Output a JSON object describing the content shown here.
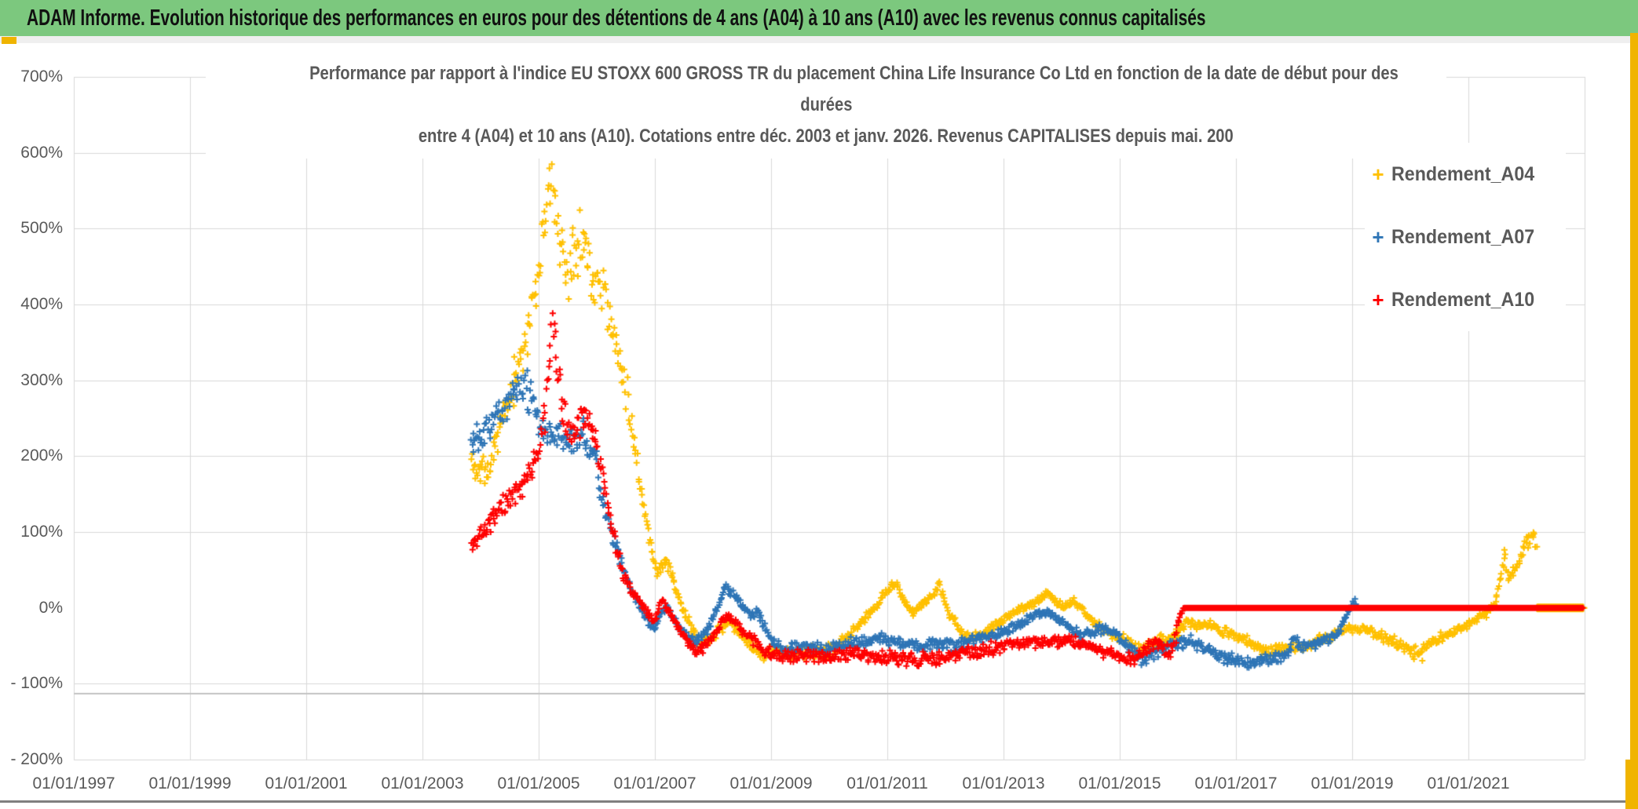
{
  "banner": {
    "text": "ADAM Informe. Evolution historique des performances en euros pour des détentions de 4 ans (A04) à 10 ans (A10) avec les revenus connus capitalisés",
    "background_color": "#7CC87E",
    "accent_color": "#F0B400"
  },
  "chart_data": {
    "type": "scatter",
    "marker": "plus",
    "title_lines": [
      "Performance par rapport à l'indice EU STOXX 600 GROSS TR  du placement China Life Insurance Co Ltd en fonction de la date de début pour des",
      "durées",
      "entre 4 (A04) et 10 ans (A10). Cotations entre déc. 2003 et janv. 2026. Revenus CAPITALISES depuis mai. 200"
    ],
    "plot": {
      "x_min": 1997,
      "x_max": 2023,
      "y_min": -200,
      "y_max": 700,
      "grid": true,
      "gridline_color": "#D9D9D9",
      "baseline_y_pct": -113
    },
    "y_axis": {
      "tick_values": [
        700,
        600,
        500,
        400,
        300,
        200,
        100,
        0,
        -100,
        -200
      ],
      "tick_labels": [
        "700%",
        "600%",
        "500%",
        "400%",
        "300%",
        "200%",
        "100%",
        "0%",
        "- 100%",
        "- 200%"
      ]
    },
    "x_axis": {
      "tick_years": [
        1997,
        1999,
        2001,
        2003,
        2005,
        2007,
        2009,
        2011,
        2013,
        2015,
        2017,
        2019,
        2021
      ],
      "tick_labels": [
        "01/01/1997",
        "01/01/1999",
        "01/01/2001",
        "01/01/2003",
        "01/01/2005",
        "01/01/2007",
        "01/01/2009",
        "01/01/2011",
        "01/01/2013",
        "01/01/2015",
        "01/01/2017",
        "01/01/2019",
        "01/01/2021"
      ],
      "gridline_years": [
        1997,
        1999,
        2001,
        2003,
        2005,
        2007,
        2009,
        2011,
        2013,
        2015,
        2017,
        2019,
        2021,
        2023
      ]
    },
    "legend_position": "right",
    "series": [
      {
        "name": "Rendement_A04",
        "color": "#FFC000",
        "seed": 11,
        "end": 2022.18,
        "flat_zero_from": 2022.18,
        "flat_zero_to": 2022.98,
        "anchors": [
          [
            2003.84,
            195
          ],
          [
            2003.95,
            180
          ],
          [
            2004.05,
            185
          ],
          [
            2004.15,
            175
          ],
          [
            2004.25,
            215
          ],
          [
            2004.4,
            255
          ],
          [
            2004.55,
            290
          ],
          [
            2004.65,
            320
          ],
          [
            2004.8,
            355
          ],
          [
            2004.95,
            420
          ],
          [
            2005.05,
            480
          ],
          [
            2005.15,
            540
          ],
          [
            2005.22,
            545
          ],
          [
            2005.3,
            520
          ],
          [
            2005.4,
            470
          ],
          [
            2005.5,
            440
          ],
          [
            2005.6,
            475
          ],
          [
            2005.75,
            490
          ],
          [
            2005.85,
            460
          ],
          [
            2005.95,
            430
          ],
          [
            2006.05,
            440
          ],
          [
            2006.15,
            420
          ],
          [
            2006.25,
            370
          ],
          [
            2006.4,
            330
          ],
          [
            2006.55,
            270
          ],
          [
            2006.7,
            190
          ],
          [
            2006.85,
            115
          ],
          [
            2006.95,
            75
          ],
          [
            2007.05,
            45
          ],
          [
            2007.15,
            60
          ],
          [
            2007.25,
            55
          ],
          [
            2007.35,
            25
          ],
          [
            2007.5,
            -5
          ],
          [
            2007.65,
            -30
          ],
          [
            2007.8,
            -48
          ],
          [
            2007.95,
            -40
          ],
          [
            2008.1,
            -30
          ],
          [
            2008.3,
            -18
          ],
          [
            2008.45,
            -35
          ],
          [
            2008.65,
            -50
          ],
          [
            2008.85,
            -62
          ],
          [
            2009.05,
            -58
          ],
          [
            2009.3,
            -60
          ],
          [
            2009.6,
            -58
          ],
          [
            2009.9,
            -60
          ],
          [
            2010.1,
            -52
          ],
          [
            2010.35,
            -35
          ],
          [
            2010.6,
            -15
          ],
          [
            2010.85,
            5
          ],
          [
            2011.0,
            25
          ],
          [
            2011.15,
            30
          ],
          [
            2011.3,
            8
          ],
          [
            2011.45,
            -8
          ],
          [
            2011.6,
            5
          ],
          [
            2011.75,
            15
          ],
          [
            2011.9,
            28
          ],
          [
            2012.05,
            -5
          ],
          [
            2012.25,
            -30
          ],
          [
            2012.45,
            -42
          ],
          [
            2012.65,
            -32
          ],
          [
            2012.85,
            -22
          ],
          [
            2013.05,
            -12
          ],
          [
            2013.3,
            -2
          ],
          [
            2013.55,
            8
          ],
          [
            2013.75,
            20
          ],
          [
            2013.9,
            8
          ],
          [
            2014.05,
            2
          ],
          [
            2014.2,
            8
          ],
          [
            2014.35,
            -2
          ],
          [
            2014.55,
            -18
          ],
          [
            2014.75,
            -30
          ],
          [
            2014.95,
            -38
          ],
          [
            2015.15,
            -45
          ],
          [
            2015.35,
            -55
          ],
          [
            2015.55,
            -48
          ],
          [
            2015.75,
            -42
          ],
          [
            2015.95,
            -35
          ],
          [
            2016.15,
            -18
          ],
          [
            2016.35,
            -25
          ],
          [
            2016.55,
            -22
          ],
          [
            2016.75,
            -30
          ],
          [
            2016.95,
            -35
          ],
          [
            2017.15,
            -42
          ],
          [
            2017.35,
            -50
          ],
          [
            2017.55,
            -57
          ],
          [
            2017.75,
            -52
          ],
          [
            2017.95,
            -50
          ],
          [
            2018.15,
            -52
          ],
          [
            2018.35,
            -45
          ],
          [
            2018.55,
            -40
          ],
          [
            2018.75,
            -32
          ],
          [
            2018.95,
            -28
          ],
          [
            2019.15,
            -28
          ],
          [
            2019.35,
            -32
          ],
          [
            2019.6,
            -40
          ],
          [
            2019.85,
            -50
          ],
          [
            2020.05,
            -58
          ],
          [
            2020.2,
            -62
          ],
          [
            2020.35,
            -45
          ],
          [
            2020.55,
            -38
          ],
          [
            2020.75,
            -32
          ],
          [
            2020.95,
            -25
          ],
          [
            2021.15,
            -15
          ],
          [
            2021.3,
            -8
          ],
          [
            2021.45,
            5
          ],
          [
            2021.55,
            35
          ],
          [
            2021.63,
            70
          ],
          [
            2021.7,
            40
          ],
          [
            2021.8,
            52
          ],
          [
            2021.9,
            68
          ],
          [
            2022.0,
            88
          ],
          [
            2022.08,
            95
          ],
          [
            2022.15,
            88
          ]
        ]
      },
      {
        "name": "Rendement_A07",
        "color": "#2E75B6",
        "seed": 22,
        "end": 2019.08,
        "anchors": [
          [
            2003.84,
            225
          ],
          [
            2004.0,
            235
          ],
          [
            2004.15,
            245
          ],
          [
            2004.3,
            255
          ],
          [
            2004.45,
            265
          ],
          [
            2004.6,
            288
          ],
          [
            2004.72,
            302
          ],
          [
            2004.85,
            280
          ],
          [
            2005.0,
            245
          ],
          [
            2005.15,
            228
          ],
          [
            2005.3,
            232
          ],
          [
            2005.45,
            215
          ],
          [
            2005.6,
            222
          ],
          [
            2005.75,
            228
          ],
          [
            2005.9,
            210
          ],
          [
            2006.0,
            195
          ],
          [
            2006.1,
            140
          ],
          [
            2006.25,
            100
          ],
          [
            2006.4,
            65
          ],
          [
            2006.55,
            30
          ],
          [
            2006.7,
            8
          ],
          [
            2006.85,
            -15
          ],
          [
            2007.0,
            -28
          ],
          [
            2007.1,
            -8
          ],
          [
            2007.2,
            2
          ],
          [
            2007.35,
            -15
          ],
          [
            2007.5,
            -32
          ],
          [
            2007.65,
            -45
          ],
          [
            2007.8,
            -42
          ],
          [
            2007.95,
            -25
          ],
          [
            2008.1,
            5
          ],
          [
            2008.22,
            30
          ],
          [
            2008.35,
            18
          ],
          [
            2008.5,
            2
          ],
          [
            2008.65,
            -10
          ],
          [
            2008.78,
            -5
          ],
          [
            2008.9,
            -25
          ],
          [
            2009.05,
            -45
          ],
          [
            2009.25,
            -55
          ],
          [
            2009.5,
            -52
          ],
          [
            2009.75,
            -55
          ],
          [
            2010.0,
            -52
          ],
          [
            2010.3,
            -48
          ],
          [
            2010.6,
            -44
          ],
          [
            2010.9,
            -40
          ],
          [
            2011.1,
            -44
          ],
          [
            2011.35,
            -48
          ],
          [
            2011.6,
            -52
          ],
          [
            2011.85,
            -46
          ],
          [
            2012.1,
            -50
          ],
          [
            2012.35,
            -45
          ],
          [
            2012.6,
            -40
          ],
          [
            2012.85,
            -36
          ],
          [
            2013.1,
            -28
          ],
          [
            2013.35,
            -18
          ],
          [
            2013.6,
            -8
          ],
          [
            2013.75,
            -5
          ],
          [
            2013.95,
            -15
          ],
          [
            2014.15,
            -28
          ],
          [
            2014.35,
            -36
          ],
          [
            2014.6,
            -30
          ],
          [
            2014.85,
            -28
          ],
          [
            2015.05,
            -42
          ],
          [
            2015.25,
            -60
          ],
          [
            2015.42,
            -72
          ],
          [
            2015.6,
            -60
          ],
          [
            2015.8,
            -50
          ],
          [
            2016.0,
            -46
          ],
          [
            2016.25,
            -44
          ],
          [
            2016.45,
            -52
          ],
          [
            2016.65,
            -60
          ],
          [
            2016.85,
            -68
          ],
          [
            2017.05,
            -72
          ],
          [
            2017.3,
            -74
          ],
          [
            2017.5,
            -68
          ],
          [
            2017.7,
            -65
          ],
          [
            2017.9,
            -60
          ],
          [
            2018.02,
            -38
          ],
          [
            2018.1,
            -52
          ],
          [
            2018.3,
            -48
          ],
          [
            2018.5,
            -44
          ],
          [
            2018.7,
            -38
          ],
          [
            2018.85,
            -20
          ],
          [
            2018.95,
            0
          ],
          [
            2019.05,
            8
          ]
        ]
      },
      {
        "name": "Rendement_A10",
        "color": "#FF0000",
        "seed": 33,
        "end": 2016.1,
        "flat_zero_from": 2016.1,
        "flat_zero_to": 2022.98,
        "anchors": [
          [
            2003.84,
            82
          ],
          [
            2004.0,
            96
          ],
          [
            2004.15,
            110
          ],
          [
            2004.3,
            124
          ],
          [
            2004.45,
            138
          ],
          [
            2004.6,
            152
          ],
          [
            2004.75,
            168
          ],
          [
            2004.88,
            182
          ],
          [
            2005.0,
            210
          ],
          [
            2005.1,
            255
          ],
          [
            2005.18,
            320
          ],
          [
            2005.26,
            375
          ],
          [
            2005.33,
            310
          ],
          [
            2005.42,
            265
          ],
          [
            2005.52,
            230
          ],
          [
            2005.65,
            238
          ],
          [
            2005.8,
            250
          ],
          [
            2005.92,
            232
          ],
          [
            2006.05,
            195
          ],
          [
            2006.18,
            140
          ],
          [
            2006.3,
            90
          ],
          [
            2006.45,
            45
          ],
          [
            2006.6,
            22
          ],
          [
            2006.75,
            8
          ],
          [
            2006.9,
            -8
          ],
          [
            2007.0,
            -18
          ],
          [
            2007.12,
            10
          ],
          [
            2007.25,
            -5
          ],
          [
            2007.4,
            -25
          ],
          [
            2007.55,
            -45
          ],
          [
            2007.7,
            -58
          ],
          [
            2007.85,
            -50
          ],
          [
            2008.0,
            -38
          ],
          [
            2008.15,
            -20
          ],
          [
            2008.27,
            -10
          ],
          [
            2008.45,
            -25
          ],
          [
            2008.65,
            -40
          ],
          [
            2008.85,
            -55
          ],
          [
            2009.05,
            -63
          ],
          [
            2009.3,
            -65
          ],
          [
            2009.6,
            -62
          ],
          [
            2009.9,
            -65
          ],
          [
            2010.2,
            -62
          ],
          [
            2010.5,
            -60
          ],
          [
            2010.8,
            -64
          ],
          [
            2011.1,
            -66
          ],
          [
            2011.4,
            -68
          ],
          [
            2011.7,
            -68
          ],
          [
            2012.0,
            -66
          ],
          [
            2012.3,
            -61
          ],
          [
            2012.6,
            -57
          ],
          [
            2012.9,
            -52
          ],
          [
            2013.15,
            -49
          ],
          [
            2013.4,
            -45
          ],
          [
            2013.65,
            -47
          ],
          [
            2013.9,
            -44
          ],
          [
            2014.1,
            -41
          ],
          [
            2014.35,
            -48
          ],
          [
            2014.6,
            -54
          ],
          [
            2014.85,
            -61
          ],
          [
            2015.05,
            -65
          ],
          [
            2015.25,
            -68
          ],
          [
            2015.45,
            -58
          ],
          [
            2015.6,
            -46
          ],
          [
            2015.75,
            -52
          ],
          [
            2015.87,
            -60
          ],
          [
            2015.95,
            -42
          ],
          [
            2016.02,
            -18
          ],
          [
            2016.08,
            -4
          ]
        ]
      }
    ]
  }
}
